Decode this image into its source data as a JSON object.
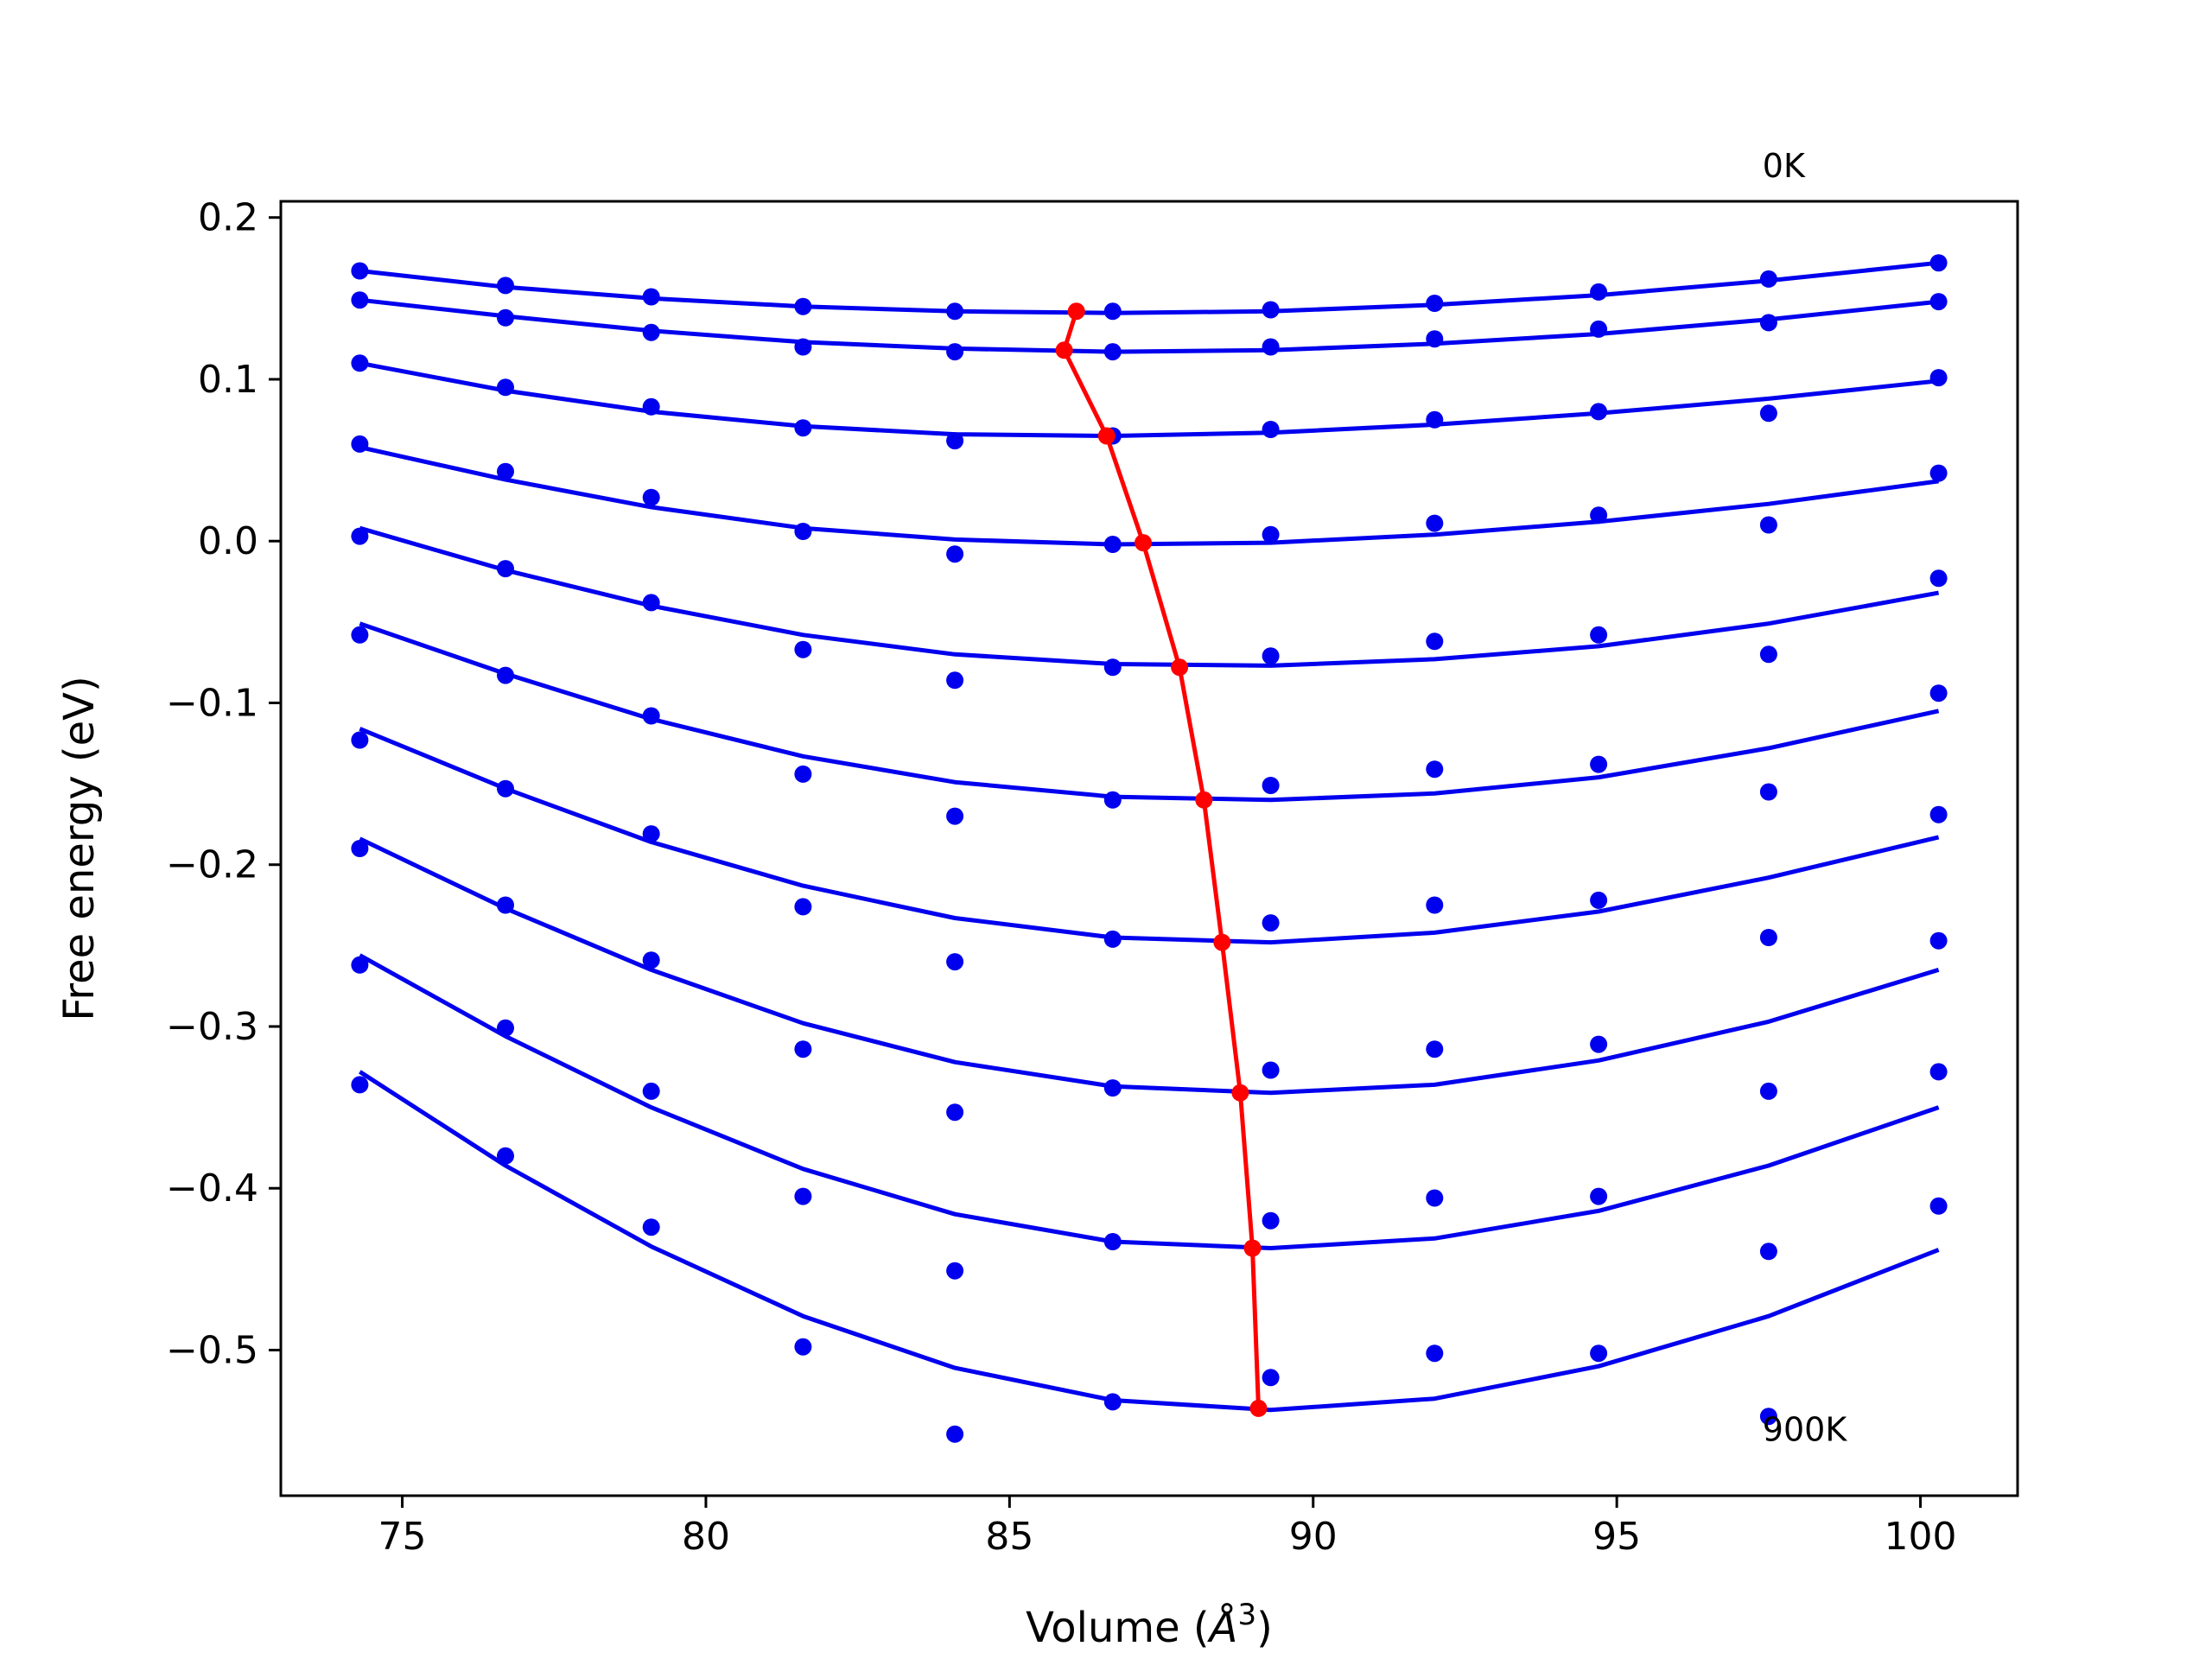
{
  "chart_data": {
    "type": "line",
    "title": "",
    "xlabel": "Volume (",
    "xlabel_unit": "Å",
    "xlabel_sup": "3",
    "xlabel_close": ")",
    "ylabel": "Free energy (eV)",
    "xlim": [
      73.0,
      101.6
    ],
    "ylim": [
      -0.59,
      0.21
    ],
    "xticks": [
      75,
      80,
      85,
      90,
      95,
      100
    ],
    "xtick_labels": [
      "75",
      "80",
      "85",
      "90",
      "95",
      "100"
    ],
    "yticks": [
      -0.5,
      -0.4,
      -0.3,
      -0.2,
      -0.1,
      0.0,
      0.1,
      0.2
    ],
    "ytick_labels": [
      "−0.5",
      "−0.4",
      "−0.3",
      "−0.2",
      "−0.1",
      "0.0",
      "0.1",
      "0.2"
    ],
    "grid": false,
    "annotations": [
      {
        "text": "0K",
        "x": 97.4,
        "y": 0.225
      },
      {
        "text": "900K",
        "x": 97.4,
        "y": -0.556
      }
    ],
    "colors": {
      "fit": "#0000ee",
      "points": "#0000ee",
      "minimum": "#ff0000",
      "axes": "#000000"
    },
    "volumes": [
      74.3,
      76.7,
      79.1,
      81.6,
      84.1,
      86.7,
      89.3,
      92.0,
      94.7,
      97.5,
      100.3
    ],
    "series": [
      {
        "points": [
          0.167,
          0.158,
          0.151,
          0.145,
          0.142,
          0.142,
          0.143,
          0.147,
          0.154,
          0.162,
          0.172
        ],
        "fit": [
          0.167,
          0.157,
          0.15,
          0.145,
          0.142,
          0.141,
          0.142,
          0.146,
          0.152,
          0.161,
          0.172
        ]
      },
      {
        "points": [
          0.149,
          0.138,
          0.129,
          0.12,
          0.117,
          0.117,
          0.12,
          0.125,
          0.131,
          0.135,
          0.148
        ],
        "fit": [
          0.149,
          0.139,
          0.13,
          0.123,
          0.119,
          0.117,
          0.118,
          0.122,
          0.128,
          0.137,
          0.148
        ]
      },
      {
        "points": [
          0.11,
          0.095,
          0.083,
          0.07,
          0.062,
          0.065,
          0.069,
          0.075,
          0.08,
          0.079,
          0.101
        ],
        "fit": [
          0.11,
          0.093,
          0.08,
          0.071,
          0.066,
          0.065,
          0.067,
          0.072,
          0.079,
          0.088,
          0.099
        ]
      },
      {
        "points": [
          0.06,
          0.043,
          0.027,
          0.006,
          -0.008,
          -0.002,
          0.004,
          0.011,
          0.016,
          0.01,
          0.042
        ],
        "fit": [
          0.058,
          0.038,
          0.021,
          0.008,
          0.001,
          -0.002,
          -0.001,
          0.004,
          0.012,
          0.023,
          0.037
        ]
      },
      {
        "points": [
          0.003,
          -0.017,
          -0.038,
          -0.067,
          -0.086,
          -0.078,
          -0.071,
          -0.062,
          -0.058,
          -0.07,
          -0.023
        ],
        "fit": [
          0.008,
          -0.018,
          -0.04,
          -0.058,
          -0.07,
          -0.076,
          -0.077,
          -0.073,
          -0.065,
          -0.051,
          -0.032
        ]
      },
      {
        "points": [
          -0.058,
          -0.083,
          -0.108,
          -0.144,
          -0.17,
          -0.16,
          -0.151,
          -0.141,
          -0.138,
          -0.155,
          -0.094
        ],
        "fit": [
          -0.051,
          -0.082,
          -0.11,
          -0.133,
          -0.149,
          -0.158,
          -0.16,
          -0.156,
          -0.146,
          -0.128,
          -0.105
        ]
      },
      {
        "points": [
          -0.123,
          -0.153,
          -0.181,
          -0.226,
          -0.26,
          -0.246,
          -0.236,
          -0.225,
          -0.222,
          -0.245,
          -0.169
        ],
        "fit": [
          -0.116,
          -0.153,
          -0.186,
          -0.213,
          -0.233,
          -0.245,
          -0.248,
          -0.242,
          -0.229,
          -0.208,
          -0.183
        ]
      },
      {
        "points": [
          -0.19,
          -0.225,
          -0.259,
          -0.314,
          -0.353,
          -0.338,
          -0.327,
          -0.314,
          -0.311,
          -0.34,
          -0.247
        ],
        "fit": [
          -0.184,
          -0.227,
          -0.265,
          -0.298,
          -0.322,
          -0.337,
          -0.341,
          -0.336,
          -0.321,
          -0.297,
          -0.265
        ]
      },
      {
        "points": [
          -0.262,
          -0.301,
          -0.34,
          -0.405,
          -0.451,
          -0.433,
          -0.42,
          -0.406,
          -0.405,
          -0.439,
          -0.328
        ],
        "fit": [
          -0.256,
          -0.306,
          -0.35,
          -0.388,
          -0.416,
          -0.433,
          -0.437,
          -0.431,
          -0.414,
          -0.386,
          -0.35
        ]
      },
      {
        "points": [
          -0.336,
          -0.38,
          -0.424,
          -0.498,
          -0.552,
          -0.532,
          -0.517,
          -0.502,
          -0.502,
          -0.541,
          -0.411
        ],
        "fit": [
          -0.328,
          -0.386,
          -0.436,
          -0.479,
          -0.511,
          -0.531,
          -0.537,
          -0.53,
          -0.51,
          -0.479,
          -0.438
        ]
      }
    ],
    "minimum_line": {
      "x": [
        86.1,
        85.9,
        86.6,
        87.2,
        87.8,
        88.2,
        88.5,
        88.8,
        89.0,
        89.1
      ],
      "y": [
        0.142,
        0.118,
        0.065,
        -0.001,
        -0.078,
        -0.16,
        -0.248,
        -0.341,
        -0.437,
        -0.536
      ]
    }
  }
}
